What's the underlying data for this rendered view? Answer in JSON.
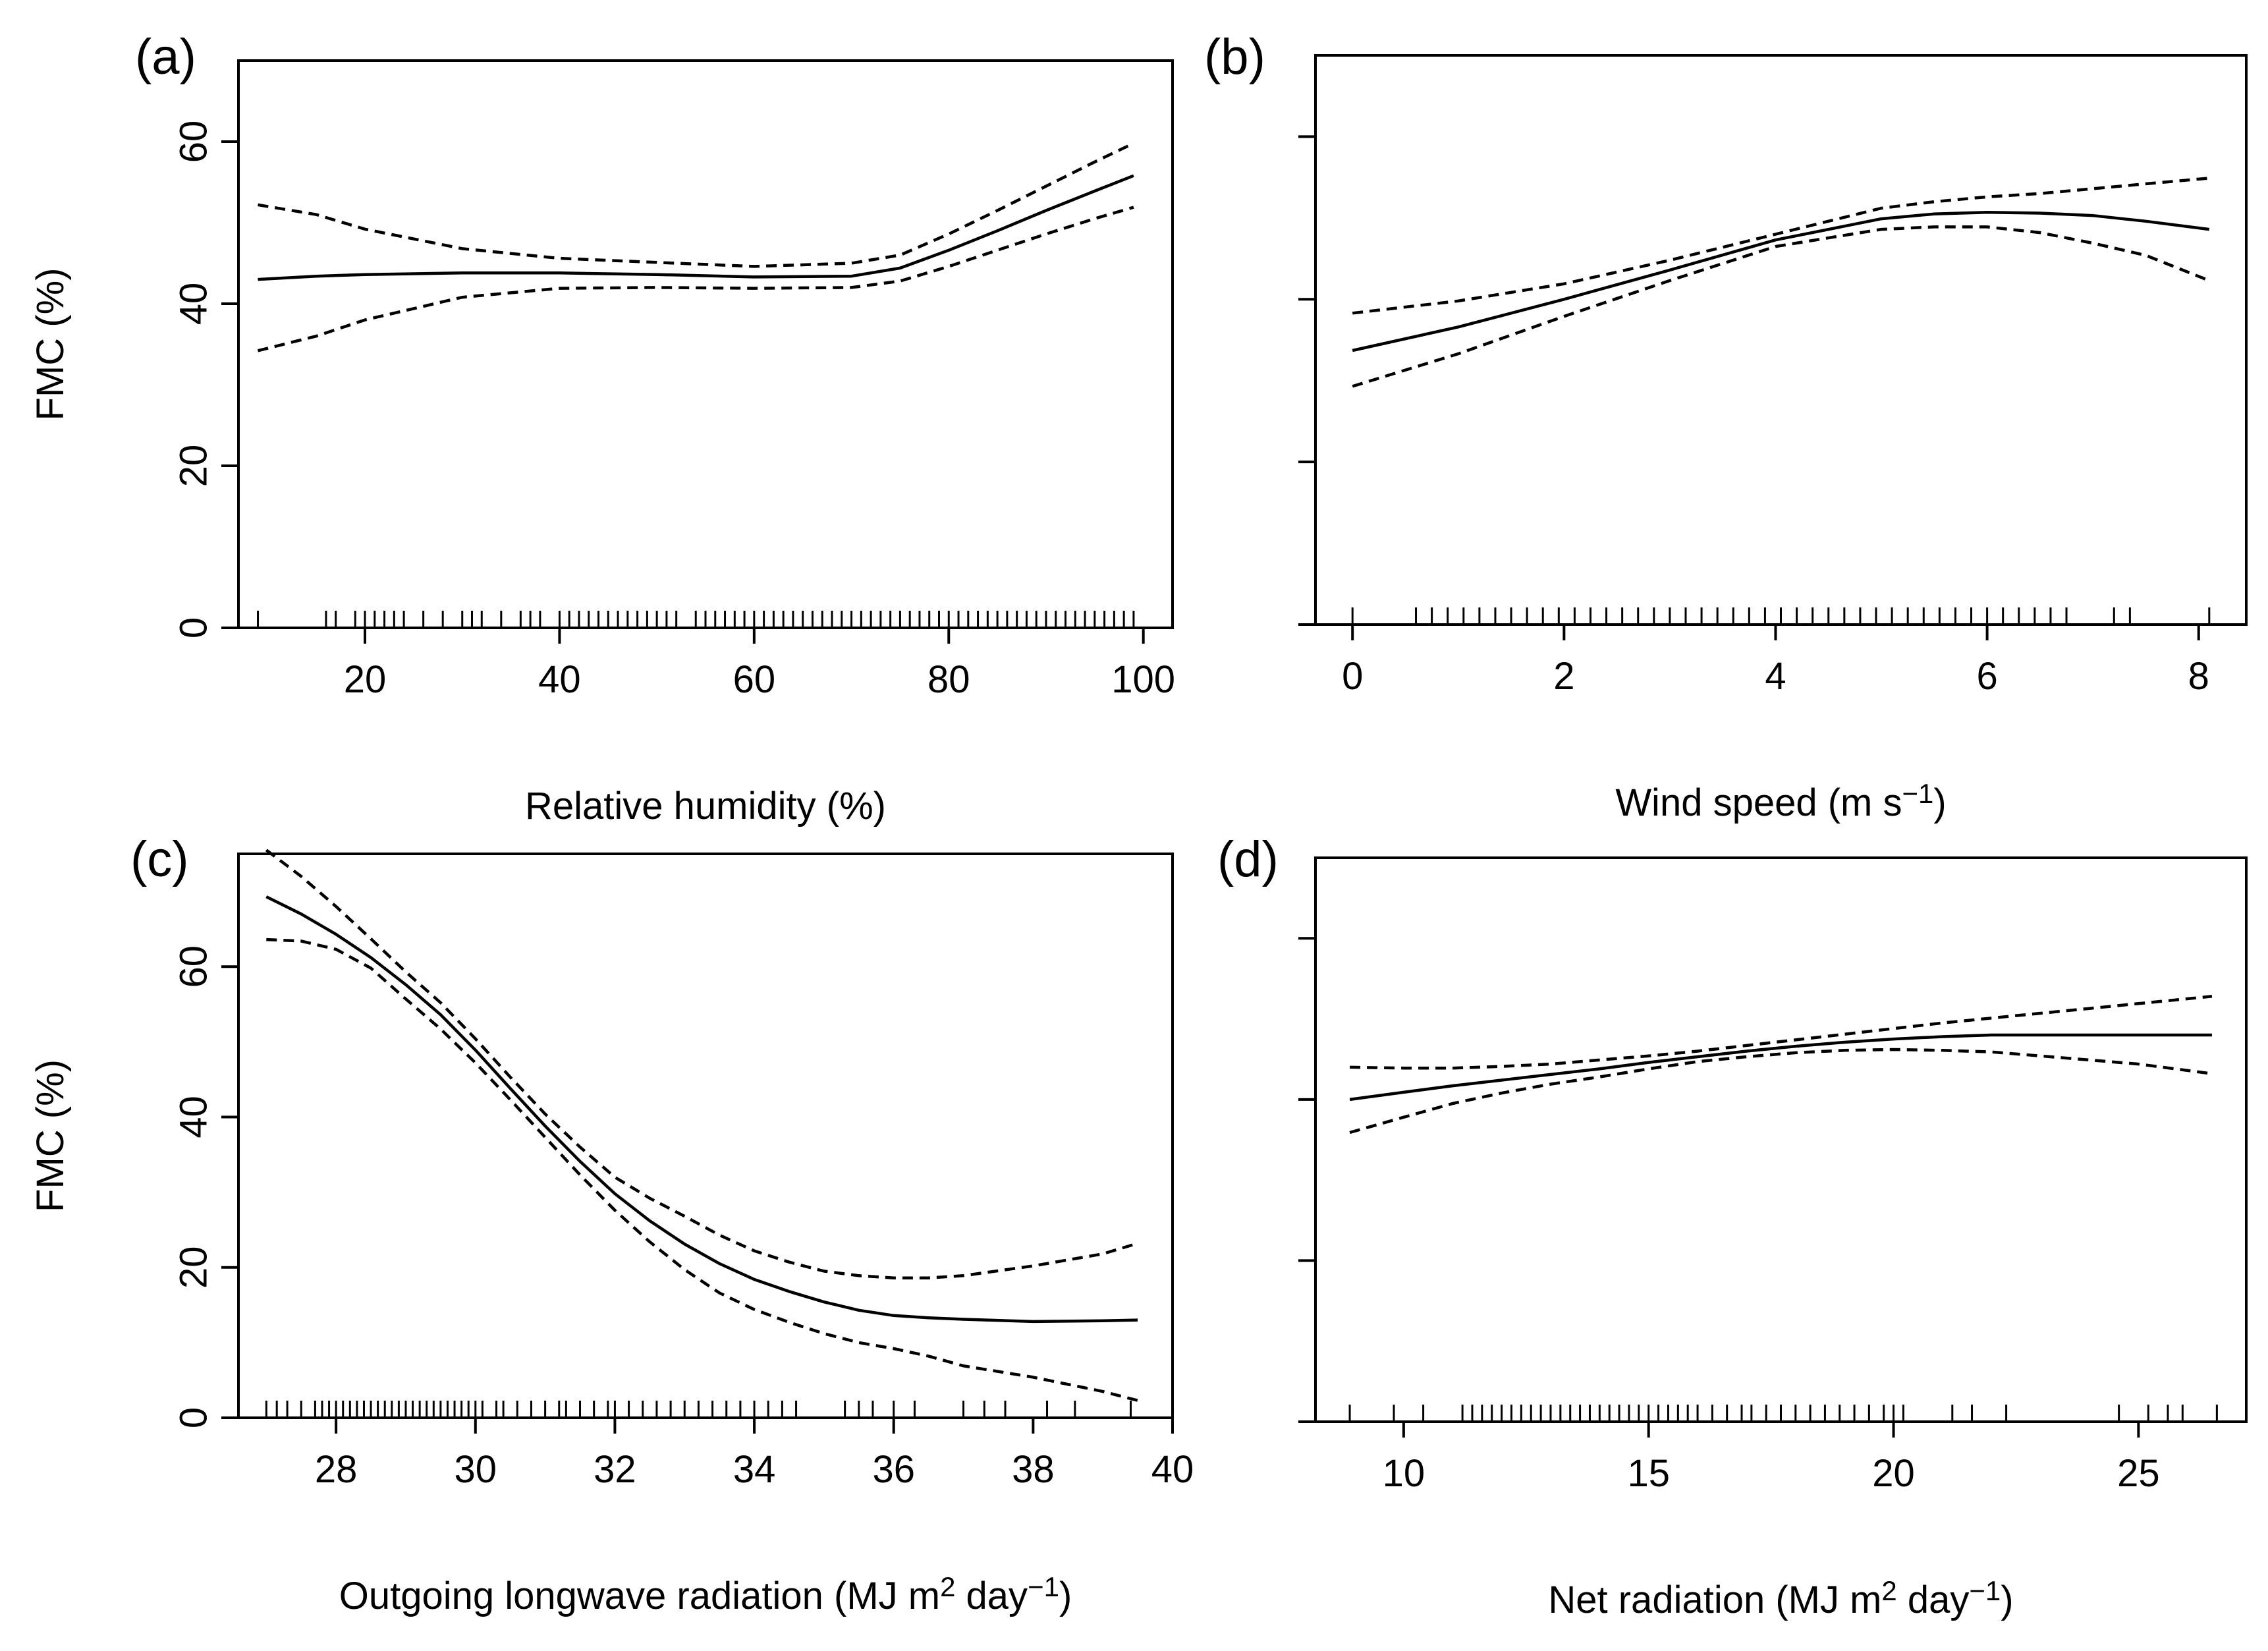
{
  "figure": {
    "panel_count": 4,
    "shared_ylabel": "FMC (%)"
  },
  "chart_data": [
    {
      "type": "line",
      "panel_label": "(a)",
      "title": "",
      "xlabel": "Relative humidity (%)",
      "xlabel_parts": {
        "text": "Relative humidity (%)"
      },
      "ylabel": "FMC (%)",
      "xlim": [
        7,
        103
      ],
      "ylim": [
        0,
        70
      ],
      "xticks": [
        20,
        40,
        60,
        80,
        100
      ],
      "xtick_labels": [
        "20",
        "40",
        "60",
        "80",
        "100"
      ],
      "yticks": [
        0,
        20,
        40,
        60
      ],
      "ytick_labels": [
        "0",
        "20",
        "40",
        "60"
      ],
      "show_ytick_labels": true,
      "show_ylabel": true,
      "grid": false,
      "x": [
        9,
        15,
        20,
        30,
        40,
        50,
        60,
        70,
        75,
        80,
        85,
        90,
        95,
        99
      ],
      "series": [
        {
          "name": "fit",
          "style": "solid",
          "values": [
            43,
            43.4,
            43.6,
            43.8,
            43.8,
            43.6,
            43.3,
            43.4,
            44.4,
            46.6,
            49.0,
            51.5,
            53.9,
            55.8
          ]
        },
        {
          "name": "upper 95% CI",
          "style": "dashed",
          "values": [
            52.2,
            51,
            49.2,
            46.8,
            45.6,
            45.1,
            44.6,
            45.0,
            46.0,
            48.6,
            51.5,
            54.5,
            57.5,
            59.8
          ]
        },
        {
          "name": "lower 95% CI",
          "style": "dashed",
          "values": [
            34.2,
            36,
            38,
            40.8,
            41.9,
            42.0,
            41.9,
            42.0,
            42.8,
            44.6,
            46.6,
            48.6,
            50.5,
            51.9
          ]
        }
      ],
      "rug": [
        9,
        16,
        17,
        19,
        20,
        21,
        22,
        23,
        24,
        26,
        28,
        30,
        31,
        32,
        34,
        36,
        37,
        38,
        40,
        41,
        42,
        43,
        44,
        45,
        46,
        47,
        48,
        49,
        50,
        51,
        52,
        54,
        55,
        56,
        57,
        58,
        59,
        60,
        61,
        62,
        63,
        64,
        65,
        66,
        67,
        68,
        69,
        70,
        71,
        72,
        73,
        74,
        75,
        76,
        77,
        78,
        79,
        80,
        81,
        82,
        83,
        84,
        85,
        86,
        87,
        88,
        89,
        90,
        91,
        92,
        93,
        94,
        95,
        96,
        97,
        98,
        99
      ]
    },
    {
      "type": "line",
      "panel_label": "(b)",
      "title": "",
      "xlabel": "Wind speed (m s−1)",
      "xlabel_parts": {
        "text": "Wind speed (m s",
        "sup": "−1",
        "after": ")"
      },
      "ylabel": "",
      "xlim": [
        -0.35,
        8.45
      ],
      "ylim": [
        0,
        70
      ],
      "xticks": [
        0,
        2,
        4,
        6,
        8
      ],
      "xtick_labels": [
        "0",
        "2",
        "4",
        "6",
        "8"
      ],
      "yticks": [
        0,
        20,
        40,
        60
      ],
      "ytick_labels": [
        "",
        "",
        "",
        ""
      ],
      "show_ytick_labels": false,
      "show_ylabel": false,
      "grid": false,
      "x": [
        0,
        1,
        2,
        3,
        4,
        5,
        5.5,
        6,
        6.5,
        7,
        7.5,
        8.1
      ],
      "series": [
        {
          "name": "fit",
          "style": "solid",
          "values": [
            33.7,
            36.6,
            40.0,
            43.6,
            47.3,
            49.9,
            50.5,
            50.7,
            50.6,
            50.3,
            49.6,
            48.6
          ]
        },
        {
          "name": "upper 95% CI",
          "style": "dashed",
          "values": [
            38.3,
            39.8,
            41.9,
            44.8,
            48.0,
            51.2,
            52.0,
            52.6,
            53.0,
            53.6,
            54.2,
            54.9
          ]
        },
        {
          "name": "lower 95% CI",
          "style": "dashed",
          "values": [
            29.3,
            33.3,
            37.9,
            42.3,
            46.5,
            48.6,
            48.9,
            48.9,
            48.2,
            46.9,
            45.4,
            42.3
          ]
        }
      ],
      "rug": [
        0,
        0.6,
        0.75,
        0.9,
        1.05,
        1.2,
        1.35,
        1.5,
        1.65,
        1.8,
        1.95,
        2.1,
        2.25,
        2.4,
        2.55,
        2.7,
        2.85,
        3.0,
        3.15,
        3.3,
        3.45,
        3.6,
        3.75,
        3.9,
        4.05,
        4.2,
        4.35,
        4.5,
        4.65,
        4.8,
        4.95,
        5.1,
        5.25,
        5.4,
        5.55,
        5.7,
        5.85,
        6.0,
        6.15,
        6.3,
        6.45,
        6.6,
        6.75,
        7.2,
        7.35,
        8.1
      ]
    },
    {
      "type": "line",
      "panel_label": "(c)",
      "title": "",
      "xlabel": "Outgoing longwave radiation (MJ m2 day−1)",
      "xlabel_parts": {
        "text": "Outgoing longwave radiation (MJ m",
        "sup": "2",
        "middle": " day",
        "sup2": "−1",
        "after": ")"
      },
      "ylabel": "FMC (%)",
      "xlim": [
        26.6,
        40
      ],
      "ylim": [
        0,
        75
      ],
      "xticks": [
        28,
        30,
        32,
        34,
        36,
        38,
        40
      ],
      "xtick_labels": [
        "28",
        "30",
        "32",
        "34",
        "36",
        "38",
        "40"
      ],
      "yticks": [
        0,
        20,
        40,
        60
      ],
      "ytick_labels": [
        "0",
        "20",
        "40",
        "60"
      ],
      "show_ytick_labels": true,
      "show_ylabel": true,
      "grid": false,
      "x": [
        27,
        27.5,
        28,
        28.5,
        29,
        29.5,
        30,
        30.5,
        31,
        31.5,
        32,
        32.5,
        33,
        33.5,
        34,
        34.5,
        35,
        35.5,
        36,
        36.5,
        37,
        38,
        39,
        39.5
      ],
      "series": [
        {
          "name": "fit",
          "style": "solid",
          "values": [
            69.3,
            67.0,
            64.3,
            61.2,
            57.6,
            53.6,
            48.9,
            43.8,
            38.8,
            34.1,
            29.8,
            26.2,
            23.1,
            20.5,
            18.4,
            16.8,
            15.4,
            14.3,
            13.6,
            13.3,
            13.1,
            12.8,
            12.9,
            13.0
          ]
        },
        {
          "name": "upper 95% CI",
          "style": "dashed",
          "values": [
            75.5,
            72.0,
            68.0,
            63.7,
            59.3,
            55.2,
            50.4,
            45.3,
            40.4,
            36.0,
            32.0,
            29.2,
            26.8,
            24.3,
            22.2,
            20.7,
            19.5,
            18.9,
            18.6,
            18.6,
            18.9,
            20.2,
            21.8,
            23.2
          ]
        },
        {
          "name": "lower 95% CI",
          "style": "dashed",
          "values": [
            63.6,
            63.4,
            62.3,
            59.8,
            55.7,
            51.7,
            47.2,
            42.3,
            37.3,
            32.3,
            27.6,
            23.4,
            19.7,
            16.6,
            14.4,
            12.7,
            11.2,
            10.0,
            9.2,
            8.2,
            6.9,
            5.4,
            3.5,
            2.3
          ]
        }
      ],
      "rug": [
        27,
        27.15,
        27.3,
        27.5,
        27.7,
        27.8,
        27.9,
        28.0,
        28.1,
        28.2,
        28.3,
        28.4,
        28.5,
        28.6,
        28.7,
        28.8,
        28.9,
        29.0,
        29.1,
        29.2,
        29.3,
        29.4,
        29.5,
        29.6,
        29.7,
        29.8,
        29.9,
        30.0,
        30.1,
        30.3,
        30.4,
        30.6,
        30.8,
        31.0,
        31.2,
        31.3,
        31.5,
        31.7,
        31.9,
        32.0,
        32.2,
        32.4,
        32.6,
        32.8,
        33.0,
        33.2,
        33.4,
        33.6,
        33.8,
        34.0,
        34.2,
        34.4,
        34.6,
        35.3,
        35.5,
        35.7,
        36.0,
        36.3,
        37.0,
        37.3,
        37.6,
        38.2,
        38.6,
        39.4
      ]
    },
    {
      "type": "line",
      "panel_label": "(d)",
      "title": "",
      "xlabel": "Net radiation (MJ m2 day−1)",
      "xlabel_parts": {
        "text": "Net radiation (MJ m",
        "sup": "2",
        "middle": " day",
        "sup2": "−1",
        "after": ")"
      },
      "ylabel": "",
      "xlim": [
        8.2,
        27.2
      ],
      "ylim": [
        0,
        70
      ],
      "xticks": [
        10,
        15,
        20,
        25
      ],
      "xtick_labels": [
        "10",
        "15",
        "20",
        "25"
      ],
      "yticks": [
        0,
        20,
        40,
        60
      ],
      "ytick_labels": [
        "",
        "",
        "",
        ""
      ],
      "show_ytick_labels": false,
      "show_ylabel": false,
      "grid": false,
      "x": [
        8.9,
        10,
        11,
        12,
        13,
        14,
        15,
        16,
        17,
        18,
        19,
        20,
        21,
        22,
        23,
        24,
        25,
        26.5
      ],
      "series": [
        {
          "name": "fit",
          "style": "solid",
          "values": [
            40.0,
            40.9,
            41.7,
            42.4,
            43.1,
            43.8,
            44.6,
            45.3,
            46.0,
            46.6,
            47.1,
            47.5,
            47.8,
            48.0,
            48.0,
            48.0,
            48.0,
            48.0
          ]
        },
        {
          "name": "upper 95% CI",
          "style": "dashed",
          "values": [
            44.0,
            43.9,
            43.9,
            44.1,
            44.4,
            44.9,
            45.4,
            46.0,
            46.7,
            47.4,
            48.1,
            48.8,
            49.5,
            50.1,
            50.7,
            51.3,
            51.9,
            52.8
          ]
        },
        {
          "name": "lower 95% CI",
          "style": "dashed",
          "values": [
            35.9,
            37.8,
            39.5,
            40.8,
            41.9,
            42.8,
            43.8,
            44.7,
            45.3,
            45.8,
            46.1,
            46.2,
            46.1,
            45.9,
            45.4,
            44.9,
            44.4,
            43.2
          ]
        }
      ],
      "rug": [
        8.9,
        9.8,
        10.4,
        11.2,
        11.4,
        11.6,
        11.8,
        12.0,
        12.2,
        12.4,
        12.6,
        12.8,
        13.0,
        13.2,
        13.4,
        13.6,
        13.8,
        14.0,
        14.2,
        14.4,
        14.6,
        14.8,
        15.0,
        15.2,
        15.4,
        15.6,
        15.8,
        16.0,
        16.3,
        16.6,
        16.9,
        17.1,
        17.4,
        17.7,
        18.0,
        18.3,
        18.6,
        18.9,
        19.2,
        19.5,
        19.8,
        20.0,
        20.2,
        21.2,
        21.6,
        22.3,
        24.6,
        25.2,
        25.6,
        25.9,
        26.6
      ]
    }
  ]
}
